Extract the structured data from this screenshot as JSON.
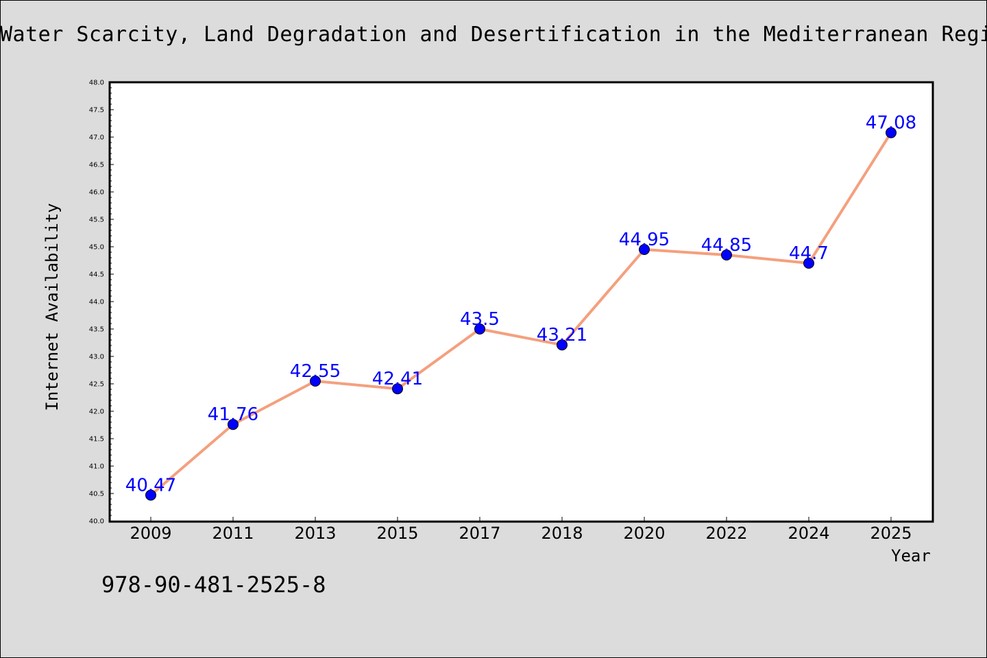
{
  "title": "Water Scarcity, Land Degradation and Desertification in the Mediterranean Region",
  "footnote": "978-90-481-2525-8",
  "colors": {
    "background": "#dcdcdc",
    "plot_area": "#ffffff",
    "line": "#f4a07e",
    "marker": "#0000ff",
    "data_label": "#0000ff"
  },
  "chart_data": {
    "type": "line",
    "title": "Water Scarcity, Land Degradation and Desertification in the Mediterranean Region",
    "xlabel": "Year",
    "ylabel": "Internet Availability",
    "categories": [
      "2009",
      "2011",
      "2013",
      "2015",
      "2017",
      "2018",
      "2020",
      "2022",
      "2024",
      "2025"
    ],
    "series": [
      {
        "values": [
          40.47,
          41.76,
          42.55,
          42.41,
          43.5,
          43.21,
          44.95,
          44.85,
          44.7,
          47.08
        ],
        "data_labels": [
          "40.47",
          "41.76",
          "42.55",
          "42.41",
          "43.5",
          "43.21",
          "44.95",
          "44.85",
          "44.7",
          "47.08"
        ]
      }
    ],
    "ylim": [
      40.0,
      48.0
    ],
    "yticks": [
      "40.0",
      "40.5",
      "41.0",
      "41.5",
      "42.0",
      "42.5",
      "43.0",
      "43.5",
      "44.0",
      "44.5",
      "45.0",
      "45.5",
      "46.0",
      "46.5",
      "47.0",
      "47.5",
      "48.0"
    ],
    "grid": false,
    "legend": "none"
  }
}
